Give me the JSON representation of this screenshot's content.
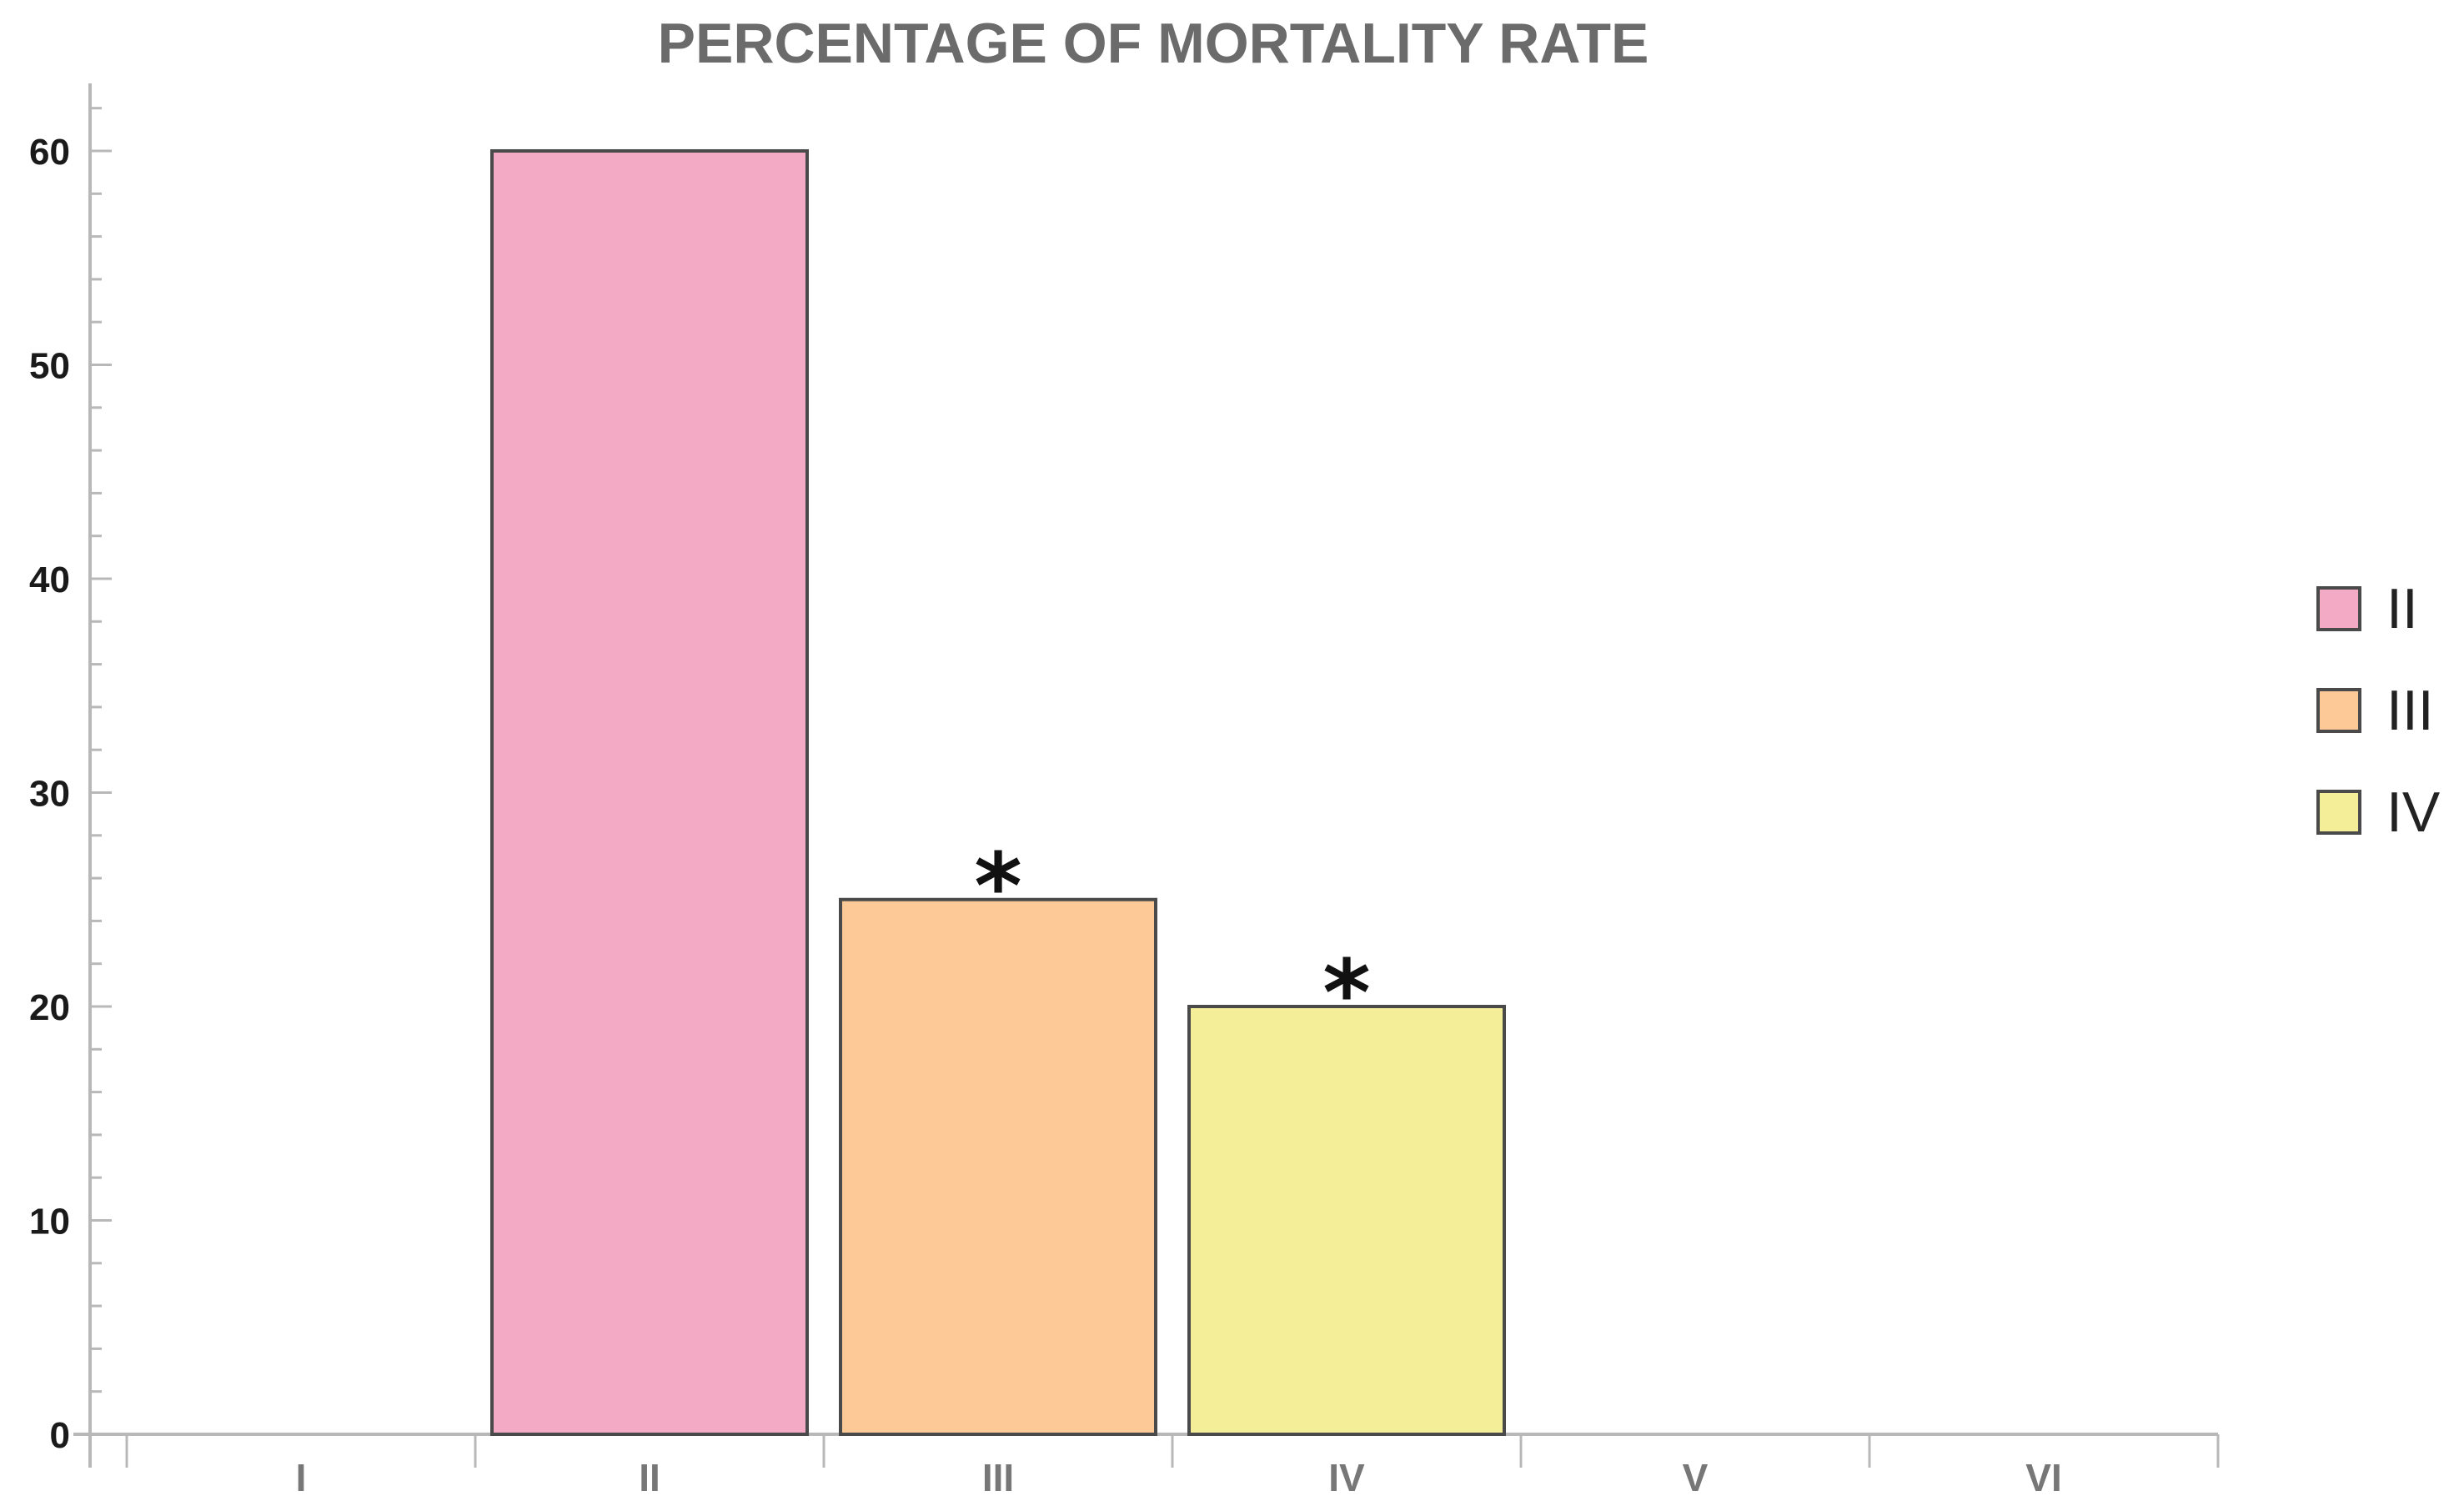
{
  "chart_data": {
    "type": "bar",
    "title": "PERCENTAGE OF MORTALITY RATE",
    "xlabel": "",
    "ylabel": "",
    "ylim": [
      0,
      63
    ],
    "yticks": [
      0,
      10,
      20,
      30,
      40,
      50,
      60
    ],
    "categories": [
      "I",
      "II",
      "III",
      "IV",
      "V",
      "VI"
    ],
    "values": [
      0,
      60,
      25,
      20,
      0,
      0
    ],
    "bar_colors": [
      "#f2aac5",
      "#f2aac5",
      "#fcc997",
      "#f5ee99",
      "#f5ee99",
      "#f5ee99"
    ],
    "annotations": [
      {
        "category": "III",
        "text": "*"
      },
      {
        "category": "IV",
        "text": "*"
      }
    ],
    "legend": {
      "placement": "right",
      "entries": [
        {
          "label": "II",
          "color": "#f2aac5"
        },
        {
          "label": "III",
          "color": "#fcc997"
        },
        {
          "label": "IV",
          "color": "#f5ee99"
        }
      ]
    },
    "grid": false
  }
}
